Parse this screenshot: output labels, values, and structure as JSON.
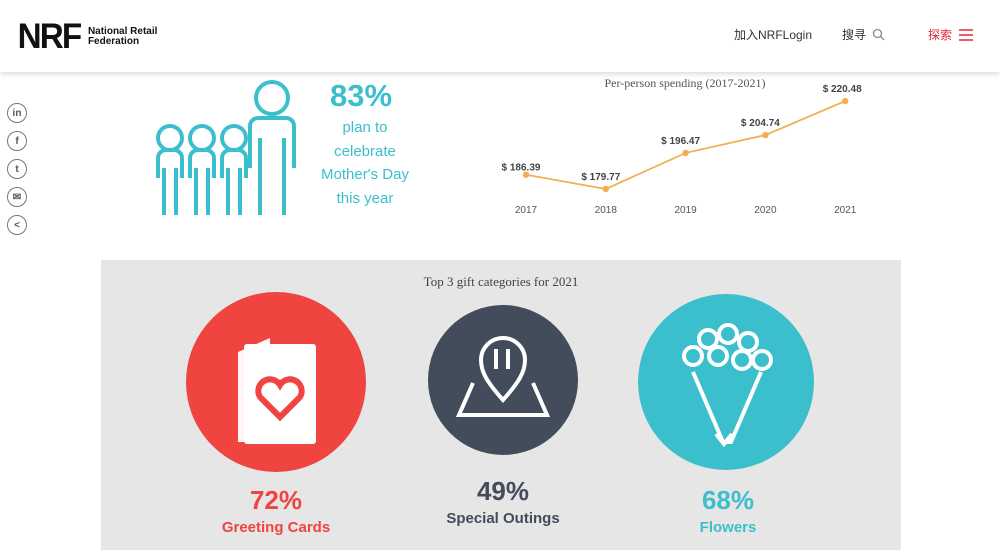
{
  "header": {
    "logo_mark": "NRF",
    "logo_text": "National Retail Federation",
    "join_login": "加入NRFLogin",
    "search": "搜寻",
    "explore": "探索"
  },
  "share": [
    "in",
    "f",
    "t",
    "✉",
    "<"
  ],
  "stat": {
    "value": "83%",
    "text": [
      "plan to",
      "celebrate",
      "Mother's Day",
      "this year"
    ]
  },
  "chart_data": {
    "type": "line",
    "title": "Per-person spending (2017-2021)",
    "categories": [
      "2017",
      "2018",
      "2019",
      "2020",
      "2021"
    ],
    "values": [
      186.39,
      179.77,
      196.47,
      204.74,
      220.48
    ],
    "labels": [
      "$  186.39",
      "$ 179.77",
      "$  196.47",
      "$  204.74",
      "$ 220.48"
    ],
    "color": "#f0b050"
  },
  "gifts": {
    "title": "Top 3 gift categories for 2021",
    "items": [
      {
        "value": "72%",
        "label": "Greeting Cards",
        "color": "#ef4440"
      },
      {
        "value": "49%",
        "label": "Special Outings",
        "color": "#434c5a"
      },
      {
        "value": "68%",
        "label": "Flowers",
        "color": "#3bbfcc"
      }
    ]
  }
}
